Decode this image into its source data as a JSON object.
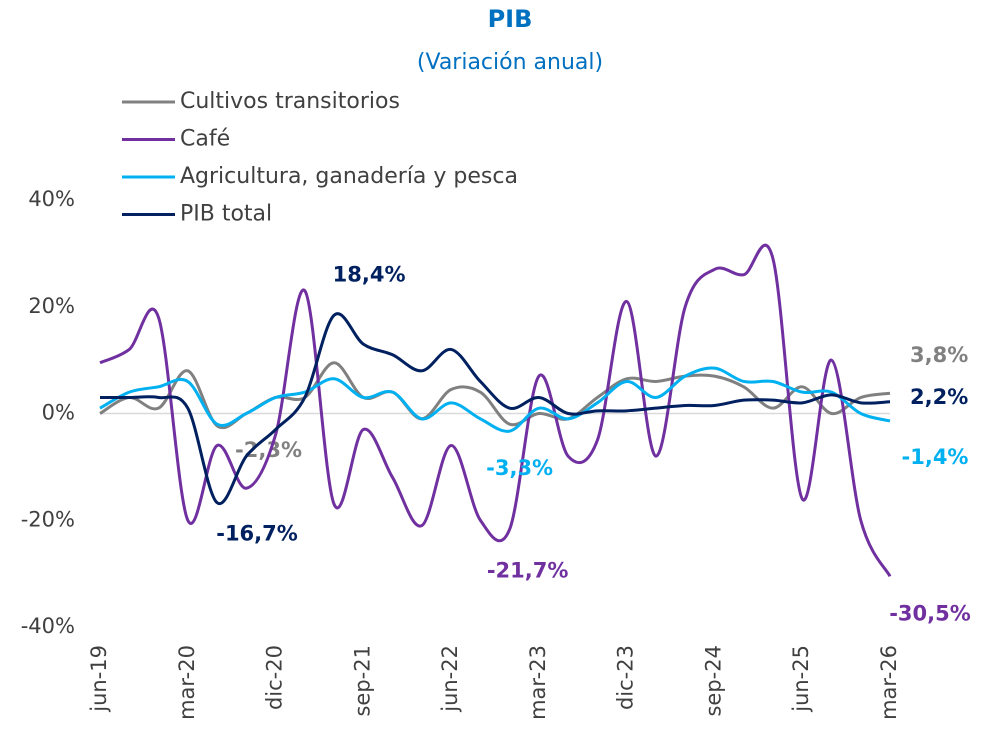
{
  "chart_data": {
    "type": "line",
    "title": "PIB",
    "subtitle": "(Variación anual)",
    "categories": [
      "jun-19",
      null,
      null,
      "mar-20",
      null,
      null,
      "dic-20",
      null,
      null,
      "sep-21",
      null,
      null,
      "jun-22",
      null,
      null,
      "mar-23",
      null,
      null,
      "dic-23",
      null,
      null,
      "sep-24",
      null,
      null,
      "jun-25",
      null,
      null,
      "mar-26"
    ],
    "ylim": [
      -40,
      40
    ],
    "yticks": [
      {
        "value": -40,
        "label": "-40%"
      },
      {
        "value": -20,
        "label": "-20%"
      },
      {
        "value": 0,
        "label": "0%"
      },
      {
        "value": 20,
        "label": "20%"
      },
      {
        "value": 40,
        "label": "40%"
      }
    ],
    "grid": false,
    "legend": "top-left",
    "series": [
      {
        "name": "Cultivos transitorios",
        "color": "#808080",
        "values": [
          0,
          3,
          1,
          8,
          -2.3,
          0,
          3,
          3,
          9.5,
          3,
          4,
          -1,
          4.5,
          4,
          -2,
          0,
          -1,
          3,
          6.5,
          6,
          7,
          7,
          5,
          1,
          5,
          0,
          3,
          3.8
        ],
        "value_labels": [
          null,
          null,
          null,
          null,
          "-2,3%",
          null,
          null,
          null,
          null,
          null,
          null,
          null,
          null,
          null,
          null,
          null,
          null,
          null,
          null,
          null,
          null,
          null,
          null,
          null,
          null,
          null,
          null,
          "3,8%"
        ]
      },
      {
        "name": "Café",
        "color": "#7030a0",
        "values": [
          9.5,
          12,
          18,
          -20,
          -6,
          -14,
          -4,
          23,
          -17,
          -3,
          -12,
          -21,
          -6,
          -20,
          -21.7,
          7,
          -8,
          -5,
          21,
          -8,
          20,
          27,
          26,
          29,
          -16,
          10,
          -20,
          -30.5
        ],
        "value_labels": [
          null,
          null,
          null,
          null,
          null,
          null,
          null,
          null,
          null,
          null,
          null,
          null,
          null,
          null,
          "-21,7%",
          null,
          null,
          null,
          null,
          null,
          null,
          null,
          null,
          null,
          null,
          null,
          null,
          "-30,5%"
        ]
      },
      {
        "name": "Agricultura, ganadería y pesca",
        "color": "#00b0f0",
        "values": [
          1,
          4,
          5,
          6,
          -2,
          0,
          3,
          4,
          6.5,
          3,
          4,
          -1,
          2,
          -1,
          -3.3,
          1,
          -1,
          2,
          6,
          3,
          7,
          8.5,
          6,
          6,
          4,
          4,
          0,
          -1.4
        ],
        "value_labels": [
          null,
          null,
          null,
          null,
          null,
          null,
          null,
          null,
          null,
          null,
          null,
          null,
          null,
          null,
          "-3,3%",
          null,
          null,
          null,
          null,
          null,
          null,
          null,
          null,
          null,
          null,
          null,
          null,
          "-1,4%"
        ]
      },
      {
        "name": "PIB total",
        "color": "#002060",
        "values": [
          3,
          3,
          3,
          1,
          -16.7,
          -8,
          -3,
          3,
          18.4,
          13,
          11,
          8,
          12,
          6,
          1,
          3,
          0,
          0.5,
          0.5,
          1,
          1.5,
          1.5,
          2.5,
          2.5,
          2,
          3.5,
          2,
          2.2
        ],
        "value_labels": [
          null,
          null,
          null,
          null,
          "-16,7%",
          null,
          null,
          null,
          "18,4%",
          null,
          null,
          null,
          null,
          null,
          null,
          null,
          null,
          null,
          null,
          null,
          null,
          null,
          null,
          null,
          null,
          null,
          null,
          "2,2%"
        ]
      }
    ]
  }
}
